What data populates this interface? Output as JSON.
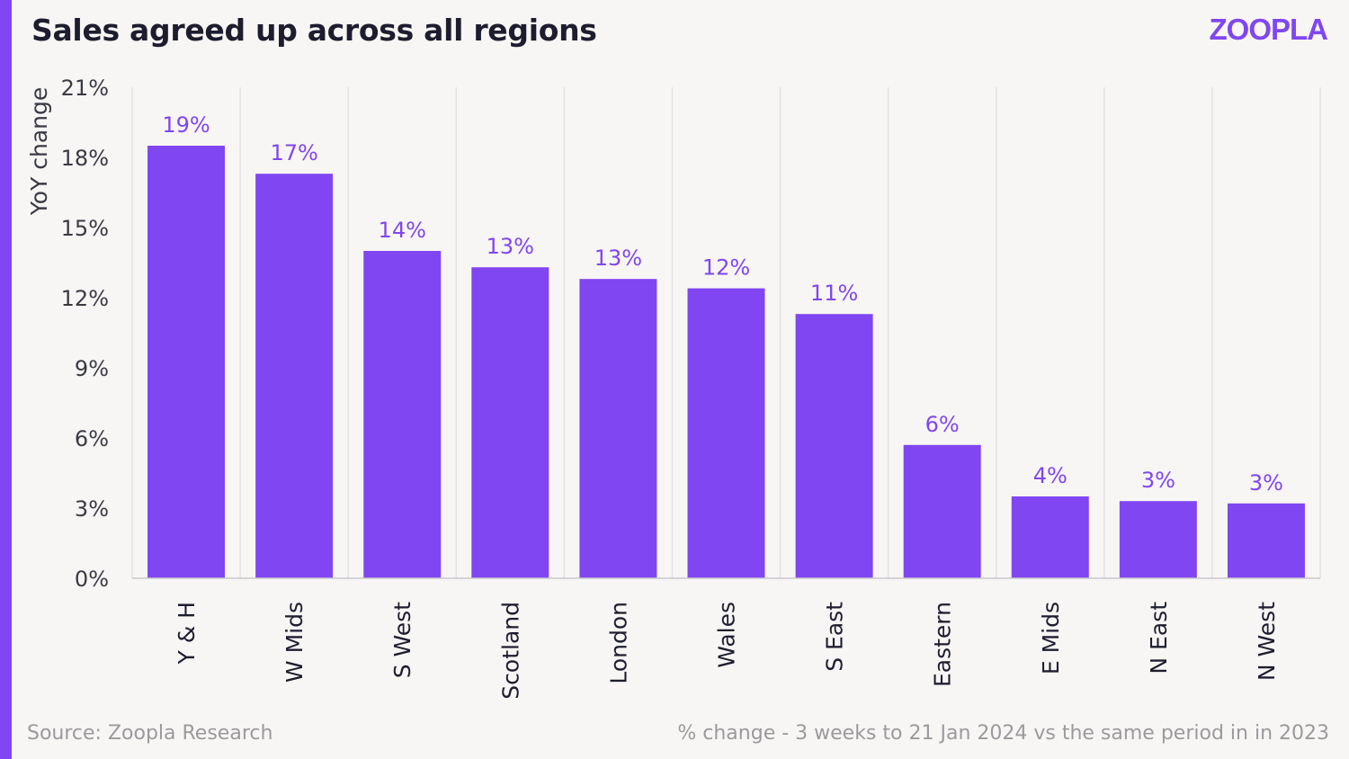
{
  "header": {
    "title": "Sales agreed up across all regions",
    "logo": "ZOOPLA"
  },
  "footer": {
    "source": "Source: Zoopla Research",
    "note": "% change - 3 weeks to 21 Jan 2024 vs the same period in in 2023"
  },
  "colors": {
    "accent": "#8046f1",
    "background": "#f8f6f4",
    "grid": "#e2e0e4"
  },
  "chart_data": {
    "type": "bar",
    "title": "Sales agreed up across all regions",
    "xlabel": "",
    "ylabel": "YoY change",
    "ylim": [
      0,
      21
    ],
    "yticks": [
      0,
      3,
      6,
      9,
      12,
      15,
      18,
      21
    ],
    "ytick_labels": [
      "0%",
      "3%",
      "6%",
      "9%",
      "12%",
      "15%",
      "18%",
      "21%"
    ],
    "categories": [
      "Y & H",
      "W Mids",
      "S West",
      "Scotland",
      "London",
      "Wales",
      "S East",
      "Eastern",
      "E Mids",
      "N East",
      "N West"
    ],
    "values": [
      18.5,
      17.3,
      14.0,
      13.3,
      12.8,
      12.4,
      11.3,
      5.7,
      3.5,
      3.3,
      3.2
    ],
    "data_labels": [
      "19%",
      "17%",
      "14%",
      "13%",
      "13%",
      "12%",
      "11%",
      "6%",
      "4%",
      "3%",
      "3%"
    ],
    "grid": true
  }
}
